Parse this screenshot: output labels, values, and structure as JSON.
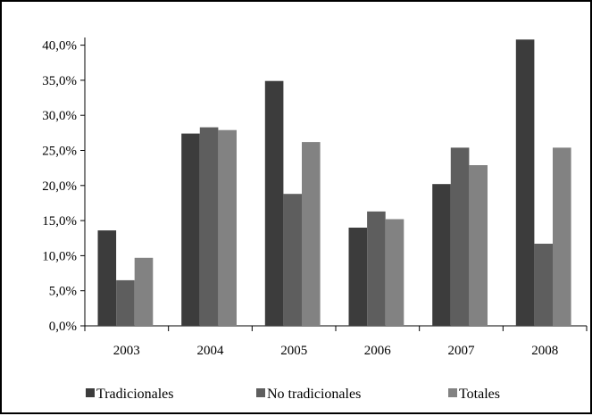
{
  "chart_data": {
    "type": "bar",
    "categories": [
      "2003",
      "2004",
      "2005",
      "2006",
      "2007",
      "2008"
    ],
    "series": [
      {
        "name": "Tradicionales",
        "color": "#3c3c3c",
        "values": [
          13.6,
          27.4,
          34.9,
          14.0,
          20.2,
          40.8
        ]
      },
      {
        "name": "No tradicionales",
        "color": "#5e5e5e",
        "values": [
          6.5,
          28.3,
          18.8,
          16.3,
          25.4,
          11.7
        ]
      },
      {
        "name": "Totales",
        "color": "#828282",
        "values": [
          9.7,
          27.9,
          26.2,
          15.2,
          22.9,
          25.4
        ]
      }
    ],
    "y_ticks": [
      "0,0%",
      "5,0%",
      "10,0%",
      "15,0%",
      "20,0%",
      "25,0%",
      "30,0%",
      "35,0%",
      "40,0%"
    ],
    "ylim": [
      0,
      45
    ],
    "title": "",
    "xlabel": "",
    "ylabel": "",
    "grid": false,
    "legend_position": "bottom"
  }
}
